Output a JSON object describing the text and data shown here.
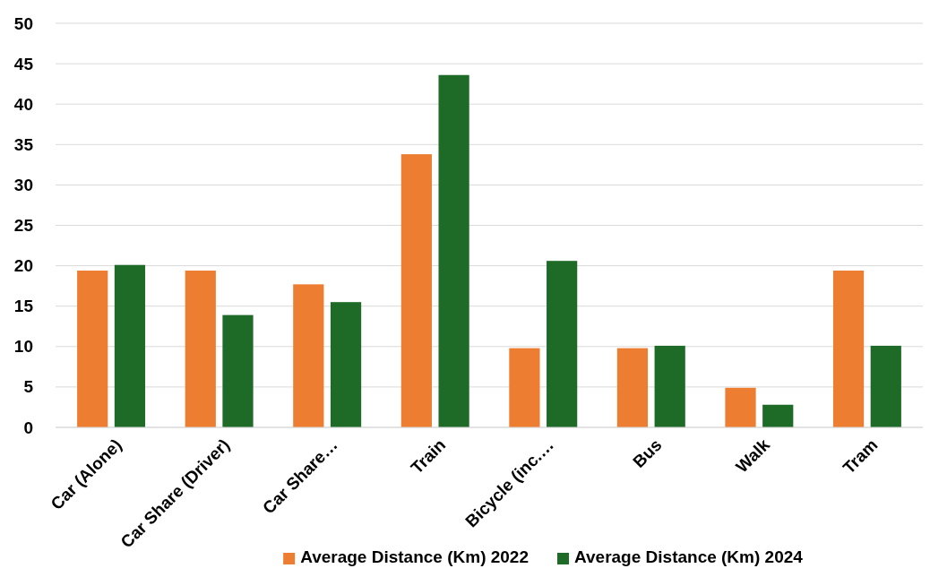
{
  "chart_data": {
    "type": "bar",
    "categories": [
      "Car (Alone)",
      "Car Share (Driver)",
      "Car Share…",
      "Train",
      "Bicycle (inc.…",
      "Bus",
      "Walk",
      "Tram"
    ],
    "series": [
      {
        "name": "Average Distance (Km) 2022",
        "color": "#ed7d31",
        "values": [
          19.4,
          19.4,
          17.7,
          33.8,
          9.8,
          9.8,
          4.9,
          19.4
        ]
      },
      {
        "name": "Average Distance (Km) 2024",
        "color": "#1e6b28",
        "values": [
          20.1,
          13.9,
          15.5,
          43.6,
          20.6,
          10.1,
          2.8,
          10.1
        ]
      }
    ],
    "ylim": [
      0,
      50
    ],
    "yticks": [
      0,
      5,
      10,
      15,
      20,
      25,
      30,
      35,
      40,
      45,
      50
    ],
    "grid": "y",
    "legend": "bottom"
  }
}
